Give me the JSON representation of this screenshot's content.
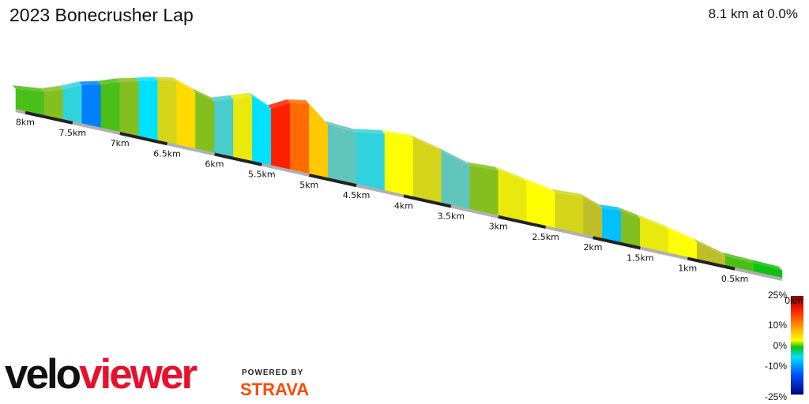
{
  "title": "2023 Bonecrusher Lap",
  "summary": "8.1 km at 0.0%",
  "logo": {
    "velo": "velo",
    "viewer": "viewer",
    "powered_by": "POWERED BY",
    "strava": "STRAVA"
  },
  "legend": {
    "labels": [
      "25%",
      "0km",
      "10%",
      "0%",
      "-10%",
      "-25%"
    ],
    "colors": [
      "#8b0000",
      "#ff2000",
      "#ff9000",
      "#ffff00",
      "#10c010",
      "#00e0ff",
      "#0050ff",
      "#000080"
    ]
  },
  "chart_data": {
    "type": "area",
    "title": "2023 Bonecrusher Lap",
    "xlabel": "",
    "ylabel": "",
    "distance_km": 8.1,
    "avg_gradient_pct": 0.0,
    "km_ticks": [
      "0.5km",
      "1km",
      "1.5km",
      "2km",
      "2.5km",
      "3km",
      "3.5km",
      "4km",
      "4.5km",
      "5km",
      "5.5km",
      "6km",
      "6.5km",
      "7km",
      "7.5km",
      "8km"
    ],
    "gradient_scale_pct": [
      -25,
      25
    ],
    "series": [
      {
        "distance_km": [
          0.0,
          0.3,
          0.6,
          0.9,
          1.2,
          1.5,
          1.7,
          1.9,
          2.1,
          2.4,
          2.7,
          3.0,
          3.3,
          3.6,
          3.9,
          4.2,
          4.5,
          4.8,
          5.0,
          5.2,
          5.4,
          5.6,
          5.8,
          6.0,
          6.2,
          6.4,
          6.6,
          6.8,
          7.0,
          7.2,
          7.4,
          7.6,
          7.8,
          8.1
        ],
        "elevation_rel": [
          3,
          4,
          5,
          14,
          22,
          28,
          32,
          30,
          38,
          36,
          42,
          48,
          46,
          56,
          64,
          62,
          56,
          58,
          78,
          74,
          62,
          72,
          64,
          56,
          62,
          70,
          66,
          60,
          54,
          46,
          40,
          30,
          22,
          18
        ],
        "gradient_pct": [
          0,
          1,
          3,
          6,
          5,
          2,
          -8,
          3,
          4,
          6,
          5,
          2,
          -2,
          4,
          6,
          -4,
          -2,
          9,
          14,
          18,
          -6,
          5,
          -3,
          2,
          8,
          4,
          -6,
          2,
          1,
          -12,
          -4,
          2,
          1,
          3
        ]
      }
    ]
  }
}
